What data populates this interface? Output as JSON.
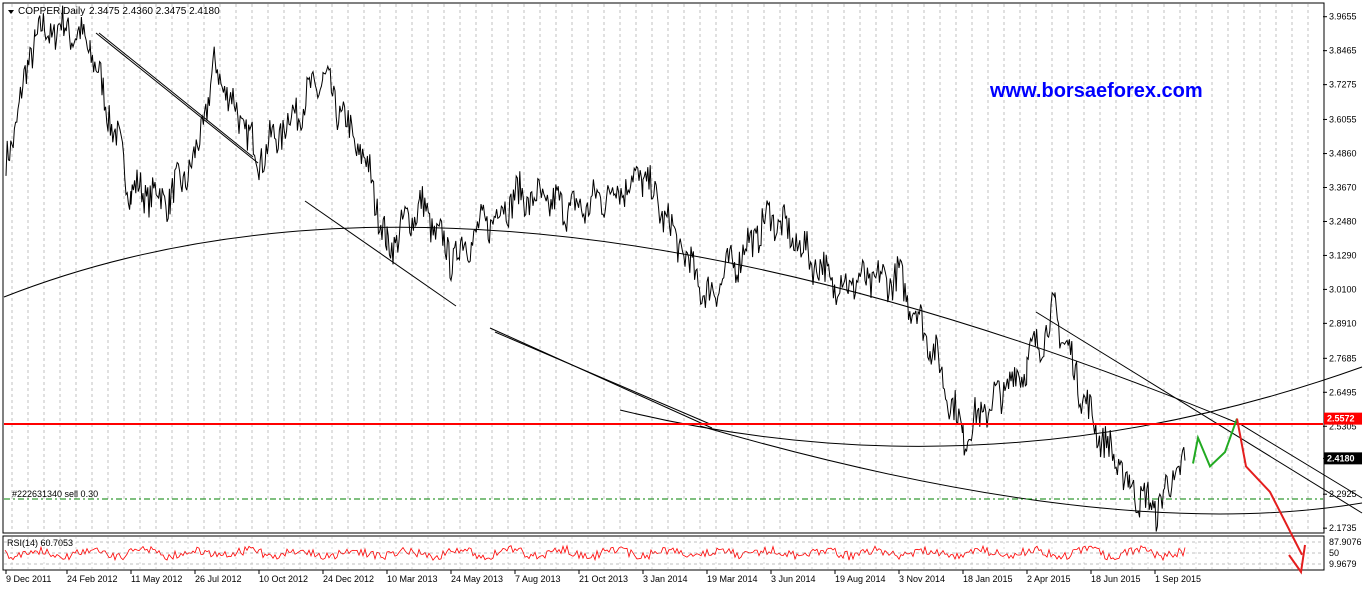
{
  "header": {
    "symbol": "COPPER,Daily",
    "ohlc": "2.3475 2.4360 2.3475 2.4180"
  },
  "watermark": "www.borsaeforex.com",
  "order_label": "#222631340 sell 0.30",
  "rsi_label": "RSI(14) 60.7053",
  "colors": {
    "price": "#000000",
    "resistance": "#ff0000",
    "order_line": "#008000",
    "rsi": "#ff0000",
    "forecast_up": "#22aa22",
    "forecast_down": "#e41e1e",
    "watermark": "#0000ff"
  },
  "chart_data": {
    "type": "line",
    "title": "COPPER,Daily",
    "x_tick_labels": [
      "9 Dec 2011",
      "24 Feb 2012",
      "11 May 2012",
      "26 Jul 2012",
      "10 Oct 2012",
      "24 Dec 2012",
      "10 Mar 2013",
      "24 May 2013",
      "7 Aug 2013",
      "21 Oct 2013",
      "3 Jan 2014",
      "19 Mar 2014",
      "3 Jun 2014",
      "19 Aug 2014",
      "3 Nov 2014",
      "18 Jan 2015",
      "2 Apr 2015",
      "18 Jun 2015",
      "1 Sep 2015"
    ],
    "y_tick_labels": [
      "3.9655",
      "3.8465",
      "3.7275",
      "3.6055",
      "3.4860",
      "3.3670",
      "3.2480",
      "3.1290",
      "3.0100",
      "2.8910",
      "2.7685",
      "2.6495",
      "2.5305",
      "2.4180",
      "2.2925",
      "2.1735"
    ],
    "ylim": [
      2.16,
      4.01
    ],
    "grid": true,
    "series": [
      {
        "name": "COPPER,Daily",
        "x": [
          "9 Dec 2011",
          "10 Jan 2012",
          "24 Feb 2012",
          "15 Mar 2012",
          "11 May 2012",
          "10 Jun 2012",
          "26 Jul 2012",
          "10 Aug 2012",
          "10 Oct 2012",
          "24 Dec 2012",
          "10 Feb 2013",
          "10 Mar 2013",
          "10 Apr 2013",
          "24 May 2013",
          "7 Aug 2013",
          "21 Oct 2013",
          "3 Jan 2014",
          "19 Mar 2014",
          "3 Jun 2014",
          "19 Aug 2014",
          "3 Nov 2014",
          "1 Dec 2014",
          "18 Jan 2015",
          "2 Apr 2015",
          "1 May 2015",
          "18 Jun 2015",
          "20 Jul 2015",
          "1 Sep 2015",
          "20 Sep 2015"
        ],
        "values": [
          3.44,
          3.9,
          3.93,
          3.86,
          3.36,
          3.33,
          3.46,
          3.79,
          3.47,
          3.75,
          3.42,
          3.15,
          3.31,
          3.12,
          3.34,
          3.29,
          3.41,
          2.98,
          3.27,
          3.03,
          3.05,
          2.83,
          2.5,
          2.75,
          2.93,
          2.56,
          2.32,
          2.24,
          2.41
        ]
      }
    ],
    "resistance": 2.5572,
    "order_level": 2.2925,
    "current_price": 2.418,
    "forecast_path": [
      2.4,
      2.49,
      2.39,
      2.44,
      2.5572,
      2.39,
      2.3,
      2.08
    ],
    "rsi": {
      "label": "RSI(14)",
      "value": 60.7053,
      "levels": [
        "87.9076",
        "50",
        "9.9679"
      ]
    }
  }
}
